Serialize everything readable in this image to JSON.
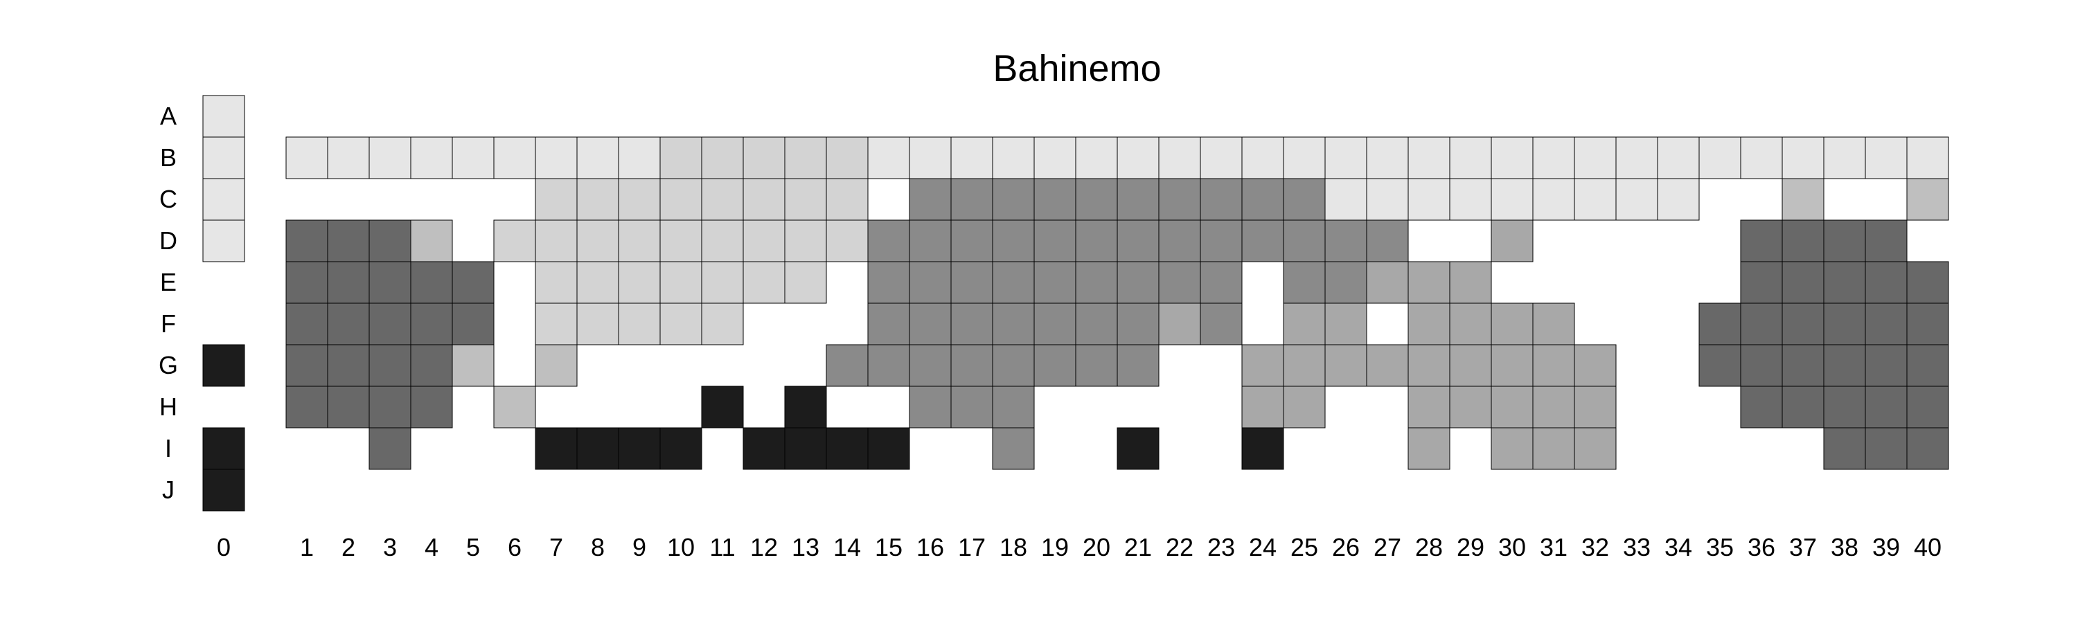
{
  "chart_data": {
    "type": "heatmap",
    "title": "Bahinemo",
    "rows": [
      "A",
      "B",
      "C",
      "D",
      "E",
      "F",
      "G",
      "H",
      "I",
      "J"
    ],
    "columns": [
      "0",
      "1",
      "2",
      "3",
      "4",
      "5",
      "6",
      "7",
      "8",
      "9",
      "10",
      "11",
      "12",
      "13",
      "14",
      "15",
      "16",
      "17",
      "18",
      "19",
      "20",
      "21",
      "22",
      "23",
      "24",
      "25",
      "26",
      "27",
      "28",
      "29",
      "30",
      "31",
      "32",
      "33",
      "34",
      "35",
      "36",
      "37",
      "38",
      "39",
      "40"
    ],
    "levels": {
      "0": "empty",
      "1": "very light grey",
      "2": "light grey",
      "3": "light-medium grey",
      "4": "medium grey",
      "5": "medium-dark grey",
      "6": "dark grey",
      "7": "black"
    },
    "palette": {
      "1": "#e6e6e6",
      "2": "#d3d3d3",
      "3": "#bfbfbf",
      "4": "#a8a8a8",
      "5": "#8a8a8a",
      "6": "#686868",
      "7": "#1c1c1c"
    },
    "grid": [
      [
        1,
        0,
        0,
        0,
        0,
        0,
        0,
        0,
        0,
        0,
        0,
        0,
        0,
        0,
        0,
        0,
        0,
        0,
        0,
        0,
        0,
        0,
        0,
        0,
        0,
        0,
        0,
        0,
        0,
        0,
        0,
        0,
        0,
        0,
        0,
        0,
        0,
        0,
        0,
        0,
        0
      ],
      [
        1,
        1,
        1,
        1,
        1,
        1,
        1,
        1,
        1,
        1,
        2,
        2,
        2,
        2,
        2,
        1,
        1,
        1,
        1,
        1,
        1,
        1,
        1,
        1,
        1,
        1,
        1,
        1,
        1,
        1,
        1,
        1,
        1,
        1,
        1,
        1,
        1,
        1,
        1,
        1,
        1
      ],
      [
        1,
        0,
        0,
        0,
        0,
        0,
        0,
        2,
        2,
        2,
        2,
        2,
        2,
        2,
        2,
        0,
        5,
        5,
        5,
        5,
        5,
        5,
        5,
        5,
        5,
        5,
        1,
        1,
        1,
        1,
        1,
        1,
        1,
        1,
        1,
        0,
        0,
        3,
        0,
        0,
        3
      ],
      [
        1,
        6,
        6,
        6,
        3,
        0,
        2,
        2,
        2,
        2,
        2,
        2,
        2,
        2,
        2,
        5,
        5,
        5,
        5,
        5,
        5,
        5,
        5,
        5,
        5,
        5,
        5,
        5,
        0,
        0,
        4,
        0,
        0,
        0,
        0,
        0,
        6,
        6,
        6,
        6,
        0
      ],
      [
        0,
        6,
        6,
        6,
        6,
        6,
        0,
        2,
        2,
        2,
        2,
        2,
        2,
        2,
        0,
        5,
        5,
        5,
        5,
        5,
        5,
        5,
        5,
        5,
        0,
        5,
        5,
        4,
        4,
        4,
        0,
        0,
        0,
        0,
        0,
        0,
        6,
        6,
        6,
        6,
        6
      ],
      [
        0,
        6,
        6,
        6,
        6,
        6,
        0,
        2,
        2,
        2,
        2,
        2,
        0,
        0,
        0,
        5,
        5,
        5,
        5,
        5,
        5,
        5,
        4,
        5,
        0,
        4,
        4,
        0,
        4,
        4,
        4,
        4,
        0,
        0,
        0,
        6,
        6,
        6,
        6,
        6,
        6
      ],
      [
        7,
        6,
        6,
        6,
        6,
        3,
        0,
        3,
        0,
        0,
        0,
        0,
        0,
        0,
        5,
        5,
        5,
        5,
        5,
        5,
        5,
        5,
        0,
        0,
        4,
        4,
        4,
        4,
        4,
        4,
        4,
        4,
        4,
        0,
        0,
        6,
        6,
        6,
        6,
        6,
        6
      ],
      [
        0,
        6,
        6,
        6,
        6,
        0,
        3,
        0,
        0,
        0,
        0,
        7,
        0,
        7,
        0,
        0,
        5,
        5,
        5,
        0,
        0,
        0,
        0,
        0,
        4,
        4,
        0,
        0,
        4,
        4,
        4,
        4,
        4,
        0,
        0,
        0,
        6,
        6,
        6,
        6,
        6
      ],
      [
        7,
        0,
        0,
        6,
        0,
        0,
        0,
        7,
        7,
        7,
        7,
        0,
        7,
        7,
        7,
        7,
        0,
        0,
        5,
        0,
        0,
        7,
        0,
        0,
        7,
        0,
        0,
        0,
        4,
        0,
        4,
        4,
        4,
        0,
        0,
        0,
        0,
        0,
        6,
        6,
        6
      ],
      [
        7,
        0,
        0,
        0,
        0,
        0,
        0,
        0,
        0,
        0,
        0,
        0,
        0,
        0,
        0,
        0,
        0,
        0,
        0,
        0,
        0,
        0,
        0,
        0,
        0,
        0,
        0,
        0,
        0,
        0,
        0,
        0,
        0,
        0,
        0,
        0,
        0,
        0,
        0,
        0,
        0
      ]
    ],
    "legend": "none",
    "grid_lines": false
  }
}
